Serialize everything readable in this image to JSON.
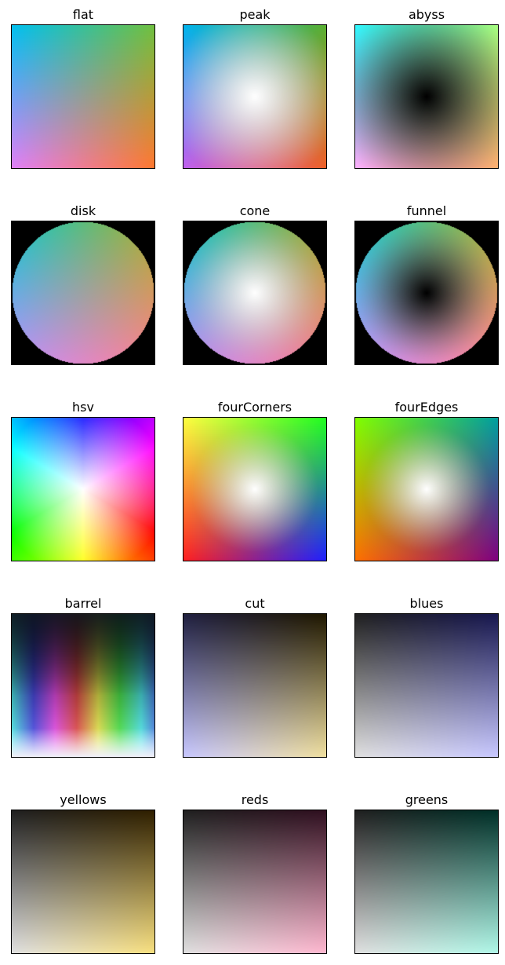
{
  "chart_data": {
    "type": "heatmap",
    "description_of_grid": "5 rows x 3 columns of 2D colormap panels",
    "panels": [
      {
        "title": "flat",
        "corners": {
          "top_left": "#00c0f0",
          "top_right": "#70c040",
          "bottom_left": "#e080f8",
          "bottom_right": "#ff7830"
        }
      },
      {
        "title": "peak",
        "corners": {
          "top_left": "#00b4ee",
          "top_right": "#5ab030",
          "bottom_left": "#c060f0",
          "bottom_right": "#f06028"
        },
        "center": "#ffffff"
      },
      {
        "title": "abyss",
        "corners": {
          "top_left": "#30f8ff",
          "top_right": "#a8ff80",
          "bottom_left": "#ffb0ff",
          "bottom_right": "#ffb070"
        },
        "center": "#000000"
      },
      {
        "title": "disk",
        "background": "#000000"
      },
      {
        "title": "cone",
        "background": "#000000",
        "center": "#ffffff"
      },
      {
        "title": "funnel",
        "background": "#000000",
        "center": "#000000"
      },
      {
        "title": "hsv",
        "center": "#ffffff"
      },
      {
        "title": "fourCorners",
        "corners": {
          "top_left": "#ffff40",
          "top_right": "#20ff20",
          "bottom_left": "#ff2020",
          "bottom_right": "#2020ff"
        },
        "center": "#ffffff"
      },
      {
        "title": "fourEdges",
        "corners": {
          "top_left": "#80ff00",
          "top_right": "#00a0a0",
          "bottom_left": "#ff7000",
          "bottom_right": "#800080"
        },
        "center": "#ffffff"
      },
      {
        "title": "barrel",
        "top": "#101820",
        "bottom": "#f0f0f8"
      },
      {
        "title": "cut",
        "corners": {
          "top_left": "#202040",
          "top_right": "#201800",
          "bottom_left": "#c8c8ff",
          "bottom_right": "#f0e0a0"
        }
      },
      {
        "title": "blues",
        "corners": {
          "top_left": "#202020",
          "top_right": "#181850",
          "bottom_left": "#e0e0e0",
          "bottom_right": "#c8c8ff"
        }
      },
      {
        "title": "yellows",
        "corners": {
          "top_left": "#202020",
          "top_right": "#302000",
          "bottom_left": "#e0e0e0",
          "bottom_right": "#f8e080"
        }
      },
      {
        "title": "reds",
        "corners": {
          "top_left": "#202020",
          "top_right": "#301020",
          "bottom_left": "#e0e0e0",
          "bottom_right": "#ffb8d0"
        }
      },
      {
        "title": "greens",
        "corners": {
          "top_left": "#202020",
          "top_right": "#003028",
          "bottom_left": "#e0e0e0",
          "bottom_right": "#b0f8e8"
        }
      }
    ]
  }
}
